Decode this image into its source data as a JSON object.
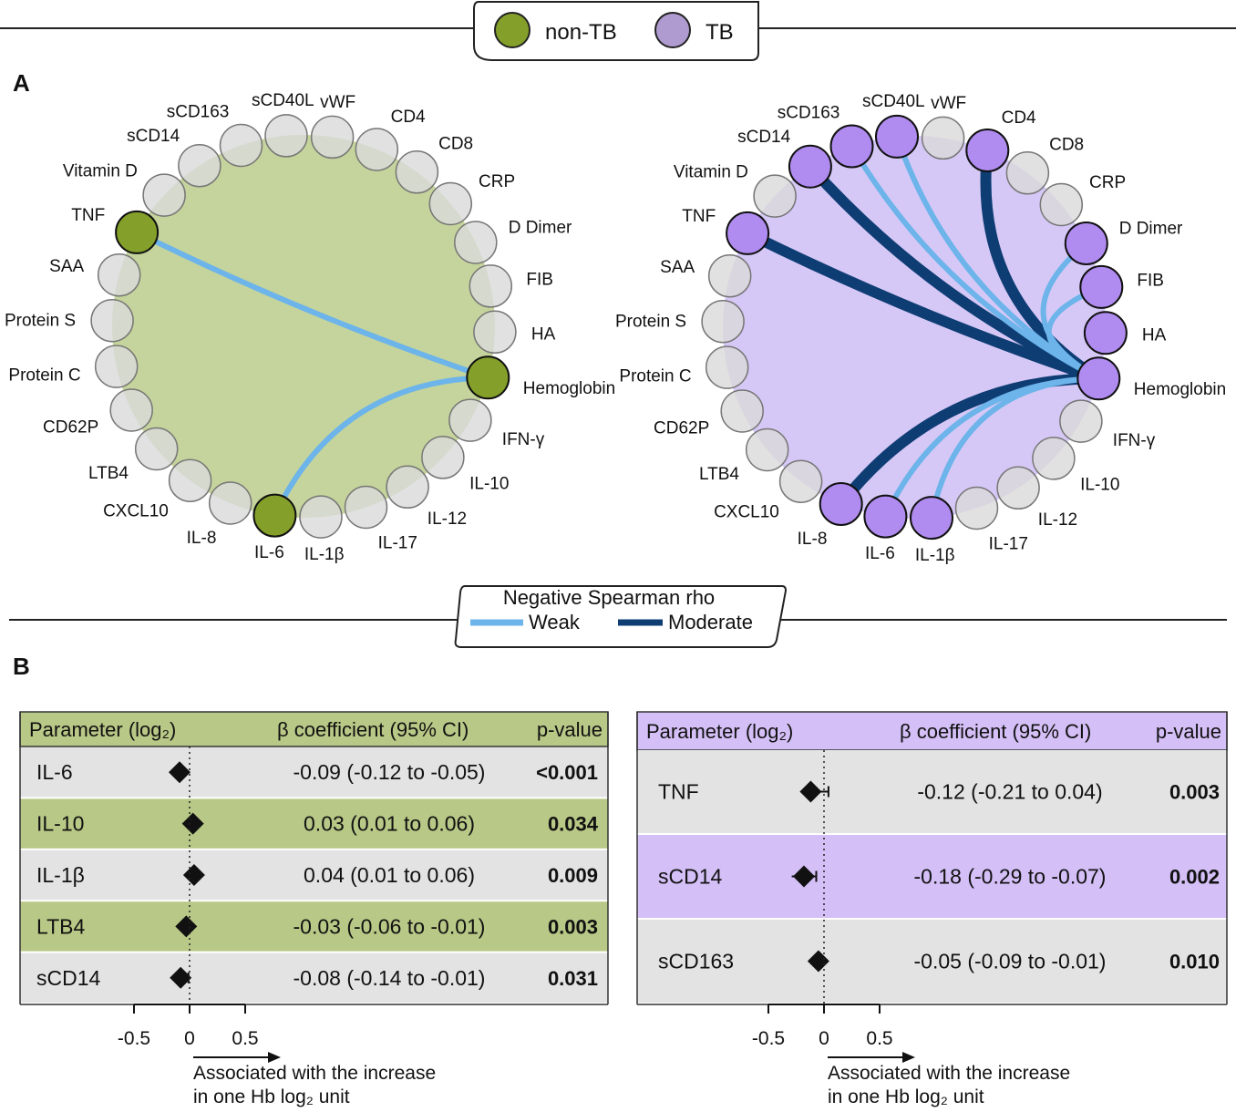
{
  "legend_top": {
    "groups": [
      {
        "label": "non-TB",
        "color": "#84a02a"
      },
      {
        "label": "TB",
        "color": "#b09bd0"
      }
    ]
  },
  "panel_a_label": "A",
  "panel_b_label": "B",
  "network_nodes": [
    "vWF",
    "CD4",
    "CD8",
    "CRP",
    "D Dimer",
    "FIB",
    "HA",
    "Hemoglobin",
    "IFN-γ",
    "IL-10",
    "IL-12",
    "IL-17",
    "IL-1β",
    "IL-6",
    "IL-8",
    "CXCL10",
    "LTB4",
    "CD62P",
    "Protein C",
    "Protein S",
    "SAA",
    "TNF",
    "Vitamin D",
    "sCD14",
    "sCD163",
    "sCD40L"
  ],
  "networks": [
    {
      "group": "non-TB",
      "bg_color": "#c5d49c",
      "active_color": "#84a02a",
      "active": [
        "TNF",
        "Hemoglobin",
        "IL-6"
      ],
      "edges": [
        {
          "from": "TNF",
          "to": "Hemoglobin",
          "strength": "weak"
        },
        {
          "from": "IL-6",
          "to": "Hemoglobin",
          "strength": "weak"
        }
      ]
    },
    {
      "group": "TB",
      "bg_color": "#d6c8f6",
      "active_color": "#b08cf0",
      "active": [
        "sCD40L",
        "CD4",
        "sCD163",
        "sCD14",
        "D Dimer",
        "FIB",
        "HA",
        "TNF",
        "Hemoglobin",
        "IL-8",
        "IL-6",
        "IL-1β"
      ],
      "edges": [
        {
          "from": "CD4",
          "to": "Hemoglobin",
          "strength": "moderate"
        },
        {
          "from": "sCD14",
          "to": "Hemoglobin",
          "strength": "moderate"
        },
        {
          "from": "TNF",
          "to": "Hemoglobin",
          "strength": "moderate"
        },
        {
          "from": "IL-8",
          "to": "Hemoglobin",
          "strength": "moderate"
        },
        {
          "from": "sCD40L",
          "to": "Hemoglobin",
          "strength": "weak"
        },
        {
          "from": "sCD163",
          "to": "Hemoglobin",
          "strength": "weak"
        },
        {
          "from": "D Dimer",
          "to": "Hemoglobin",
          "strength": "weak"
        },
        {
          "from": "FIB",
          "to": "Hemoglobin",
          "strength": "weak"
        },
        {
          "from": "IL-6",
          "to": "Hemoglobin",
          "strength": "weak"
        },
        {
          "from": "IL-1β",
          "to": "Hemoglobin",
          "strength": "weak"
        }
      ]
    }
  ],
  "edge_legend": {
    "title": "Negative Spearman rho",
    "weak": {
      "label": "Weak",
      "color": "#6cb4ea"
    },
    "moderate": {
      "label": "Moderate",
      "color": "#0e3d74"
    }
  },
  "forest_tables": [
    {
      "group": "non-TB",
      "header": {
        "param": "Parameter (log₂)",
        "coef": "β coefficient (95% CI)",
        "pval": "p-value"
      },
      "header_color": "#b8c886",
      "stripe_color": "#b8c886",
      "alt_color": "#e3e3e3",
      "rows": [
        {
          "param": "IL-6",
          "beta": -0.09,
          "ci_low": -0.12,
          "ci_high": -0.05,
          "text": "-0.09 (-0.12 to -0.05)",
          "p": "<0.001"
        },
        {
          "param": "IL-10",
          "beta": 0.03,
          "ci_low": 0.01,
          "ci_high": 0.06,
          "text": "0.03 (0.01 to 0.06)",
          "p": "0.034"
        },
        {
          "param": "IL-1β",
          "beta": 0.04,
          "ci_low": 0.01,
          "ci_high": 0.06,
          "text": "0.04 (0.01 to 0.06)",
          "p": "0.009"
        },
        {
          "param": "LTB4",
          "beta": -0.03,
          "ci_low": -0.06,
          "ci_high": -0.01,
          "text": "-0.03 (-0.06 to -0.01)",
          "p": "0.003"
        },
        {
          "param": "sCD14",
          "beta": -0.08,
          "ci_low": -0.14,
          "ci_high": -0.01,
          "text": "-0.08 (-0.14 to -0.01)",
          "p": "0.031"
        }
      ],
      "axis": {
        "ticks": [
          "-0.5",
          "0",
          "0.5"
        ],
        "range": [
          -0.5,
          0.5
        ]
      },
      "note_line1": "Associated with the increase",
      "note_line2": "in one Hb log₂ unit"
    },
    {
      "group": "TB",
      "header": {
        "param": "Parameter (log₂)",
        "coef": "β coefficient (95% CI)",
        "pval": "p-value"
      },
      "header_color": "#d4bff6",
      "stripe_color": "#d4bff6",
      "alt_color": "#e3e3e3",
      "rows": [
        {
          "param": "TNF",
          "beta": -0.12,
          "ci_low": -0.21,
          "ci_high": 0.04,
          "text": "-0.12 (-0.21 to 0.04)",
          "p": "0.003"
        },
        {
          "param": "sCD14",
          "beta": -0.18,
          "ci_low": -0.29,
          "ci_high": -0.07,
          "text": "-0.18 (-0.29 to -0.07)",
          "p": "0.002"
        },
        {
          "param": "sCD163",
          "beta": -0.05,
          "ci_low": -0.09,
          "ci_high": -0.01,
          "text": "-0.05 (-0.09 to -0.01)",
          "p": "0.010"
        }
      ],
      "axis": {
        "ticks": [
          "-0.5",
          "0",
          "0.5"
        ],
        "range": [
          -0.5,
          0.5
        ]
      },
      "note_line1": "Associated with the increase",
      "note_line2": "in one Hb log₂ unit"
    }
  ]
}
